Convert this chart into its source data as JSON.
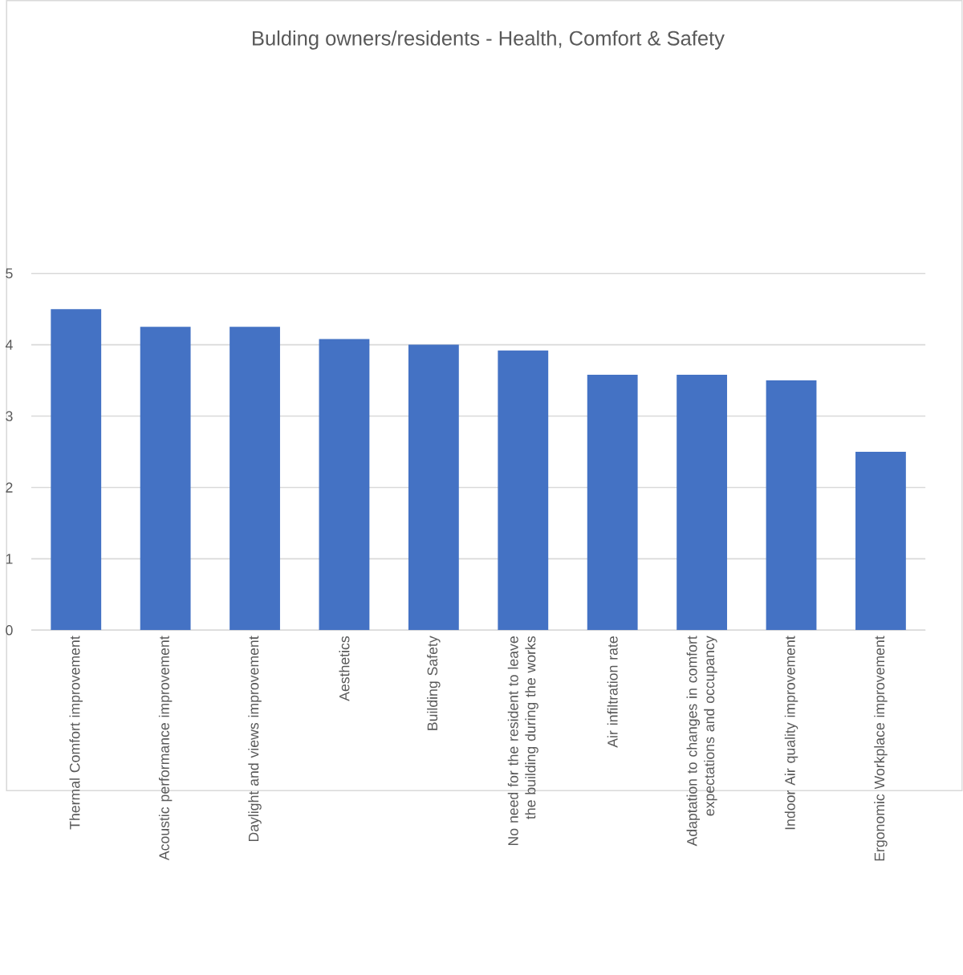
{
  "chart_data": {
    "type": "bar",
    "title": "Bulding owners/residents - Health, Comfort & Safety",
    "categories": [
      "Thermal Comfort improvement",
      "Acoustic performance improvement",
      "Daylight and views improvement",
      "Aesthetics",
      "Building Safety",
      "No need for the resident to leave the building during the works",
      "Air infiltration rate",
      "Adaptation to changes in comfort expectations and occupancy",
      "Indoor Air quality improvement",
      "Ergonomic Workplace improvement"
    ],
    "values": [
      4.5,
      4.25,
      4.25,
      4.08,
      4.0,
      3.92,
      3.58,
      3.58,
      3.5,
      2.5
    ],
    "color": "#4472c4",
    "ylim": [
      0,
      5
    ],
    "yticks": [
      0,
      1,
      2,
      3,
      4,
      5
    ],
    "grid": "y"
  }
}
